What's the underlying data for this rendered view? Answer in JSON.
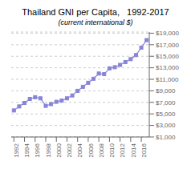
{
  "chart_data": {
    "type": "line",
    "title": "Thailand GNI per Capita,   1992-2017",
    "subtitle": "(current international $)",
    "x": [
      1992,
      1993,
      1994,
      1995,
      1996,
      1997,
      1998,
      1999,
      2000,
      2001,
      2002,
      2003,
      2004,
      2005,
      2006,
      2007,
      2008,
      2009,
      2010,
      2011,
      2012,
      2013,
      2014,
      2015,
      2016,
      2017
    ],
    "values": [
      5600,
      6300,
      6900,
      7600,
      7900,
      7700,
      6400,
      6700,
      7100,
      7300,
      7700,
      8200,
      9000,
      9700,
      10400,
      11100,
      12000,
      11900,
      12900,
      13100,
      13500,
      14000,
      14500,
      15200,
      16500,
      17800
    ],
    "marker": "square",
    "xlim": [
      1991.5,
      2017.5
    ],
    "xticks": [
      1992,
      1994,
      1996,
      1998,
      2000,
      2002,
      2004,
      2006,
      2008,
      2010,
      2012,
      2014,
      2016
    ],
    "ylim": [
      1000,
      19200
    ],
    "yticks": [
      {
        "value": 1000,
        "label": "$1,000"
      },
      {
        "value": 3000,
        "label": "$3,000"
      },
      {
        "value": 5000,
        "label": "$5,000"
      },
      {
        "value": 7000,
        "label": "$7,000"
      },
      {
        "value": 9000,
        "label": "$9,000"
      },
      {
        "value": 11000,
        "label": "$11,000"
      },
      {
        "value": 13000,
        "label": "$13,000"
      },
      {
        "value": 15000,
        "label": "$15,000"
      },
      {
        "value": 17000,
        "label": "$17,000"
      },
      {
        "value": 19000,
        "label": "$19,000"
      }
    ],
    "grid": true
  }
}
